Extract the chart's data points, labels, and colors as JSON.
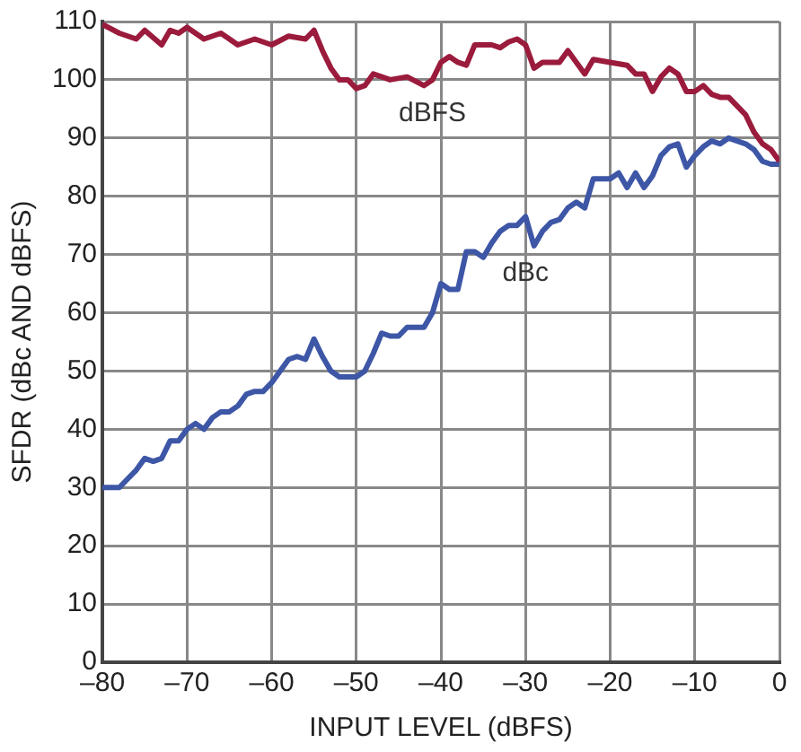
{
  "chart_data": {
    "type": "line",
    "xlabel": "INPUT LEVEL (dBFS)",
    "ylabel": "SFDR (dBc AND dBFS)",
    "xlim": [
      -80,
      0
    ],
    "xticks": [
      {
        "value": -80,
        "label": "–80"
      },
      {
        "value": -70,
        "label": "–70"
      },
      {
        "value": -60,
        "label": "–60"
      },
      {
        "value": -50,
        "label": "–50"
      },
      {
        "value": -40,
        "label": "–40"
      },
      {
        "value": -30,
        "label": "–30"
      },
      {
        "value": -20,
        "label": "–20"
      },
      {
        "value": -10,
        "label": "–10"
      },
      0
    ],
    "ylim": [
      0,
      110
    ],
    "yticks": [
      0,
      10,
      20,
      30,
      40,
      50,
      60,
      70,
      80,
      90,
      100,
      110
    ],
    "grid": true,
    "legend": false,
    "marker": "none",
    "line_style": "solid",
    "series": [
      {
        "name": "dBFS",
        "color": "#9b1b3c",
        "x": [
          -80,
          -78,
          -76,
          -75,
          -73,
          -72,
          -71,
          -70,
          -68,
          -66,
          -64,
          -62,
          -60,
          -58,
          -56,
          -55,
          -54,
          -53,
          -52,
          -51,
          -50,
          -49,
          -48,
          -46,
          -44,
          -42,
          -41,
          -40,
          -39,
          -38,
          -37,
          -36,
          -34,
          -33,
          -32,
          -31,
          -30,
          -29,
          -28,
          -26,
          -25,
          -24,
          -23,
          -22,
          -20,
          -18,
          -17,
          -16,
          -15,
          -14,
          -13,
          -12,
          -11,
          -10,
          -9,
          -8,
          -7,
          -6,
          -5,
          -4,
          -3,
          -2,
          -1,
          0
        ],
        "values": [
          109.5,
          108,
          107,
          108.5,
          106,
          108.5,
          108,
          109,
          107,
          108,
          106,
          107,
          106,
          107.5,
          107,
          108.5,
          105,
          102,
          100,
          100,
          98.5,
          99,
          101,
          100,
          100.5,
          99,
          100,
          103,
          104,
          103,
          102.5,
          106,
          106,
          105.5,
          106.5,
          107,
          106,
          102,
          103,
          103,
          105,
          103,
          101,
          103.5,
          103,
          102.5,
          101,
          101,
          98,
          100.5,
          102,
          101,
          98,
          98,
          99,
          97.5,
          97,
          97,
          95.5,
          94,
          91,
          89,
          88,
          86
        ]
      },
      {
        "name": "dBc",
        "color": "#3d56a6",
        "x": [
          -80,
          -78,
          -77,
          -76,
          -75,
          -74,
          -73,
          -72,
          -71,
          -70,
          -69,
          -68,
          -67,
          -66,
          -65,
          -64,
          -63,
          -62,
          -61,
          -60,
          -59,
          -58,
          -57,
          -56,
          -55,
          -54,
          -53,
          -52,
          -51,
          -50,
          -49,
          -48,
          -47,
          -46,
          -45,
          -44,
          -43,
          -42,
          -41,
          -40,
          -39,
          -38,
          -37,
          -36,
          -35,
          -34,
          -33,
          -32,
          -31,
          -30,
          -29,
          -28,
          -27,
          -26,
          -25,
          -24,
          -23,
          -22,
          -21,
          -20,
          -19,
          -18,
          -17,
          -16,
          -15,
          -14,
          -13,
          -12,
          -11,
          -10,
          -9,
          -8,
          -7,
          -6,
          -5,
          -4,
          -3,
          -2,
          -1,
          0
        ],
        "values": [
          30,
          30,
          31.5,
          33,
          35,
          34.5,
          35,
          38,
          38,
          40,
          41,
          40,
          42,
          43,
          43,
          44,
          46,
          46.5,
          46.5,
          48,
          50,
          52,
          52.5,
          52,
          55.5,
          52.5,
          50,
          49,
          49,
          49,
          50,
          53,
          56.5,
          56,
          56,
          57.5,
          57.5,
          57.5,
          60,
          65,
          64,
          64,
          70.5,
          70.5,
          69.5,
          72,
          74,
          75,
          75,
          76.5,
          71.5,
          74,
          75.5,
          76,
          78,
          79,
          78,
          83,
          83,
          83,
          84,
          81.5,
          84,
          81.5,
          83.5,
          87,
          88.5,
          89,
          85,
          87,
          88.5,
          89.5,
          89,
          90,
          89.5,
          89,
          88,
          86,
          85.5,
          85.5
        ]
      }
    ]
  }
}
